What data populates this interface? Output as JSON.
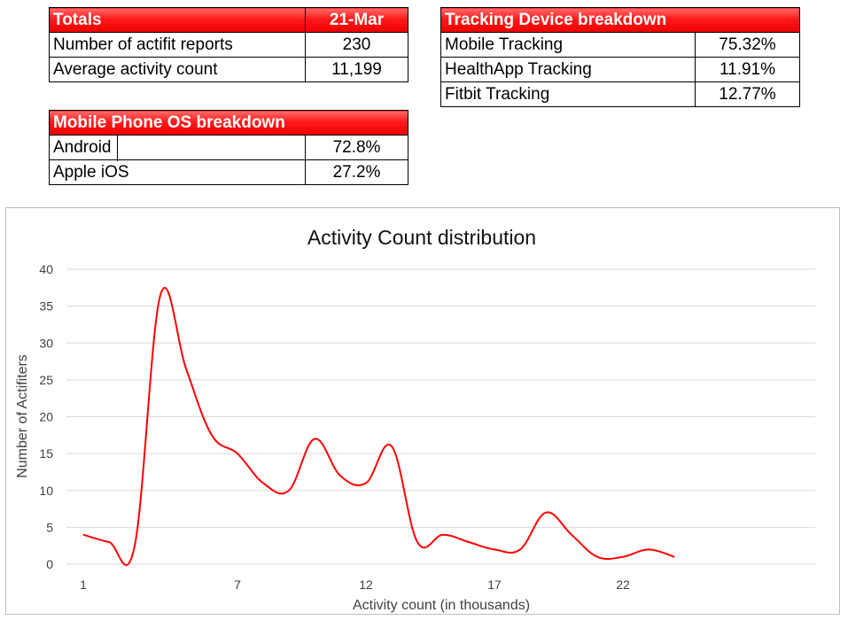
{
  "totals": {
    "header": "Totals",
    "date": "21-Mar",
    "rows": [
      {
        "label": "Number of actifit reports",
        "value": "230"
      },
      {
        "label": "Average activity count",
        "value": "11,199"
      }
    ]
  },
  "tracking": {
    "header": "Tracking Device breakdown",
    "rows": [
      {
        "label": "Mobile Tracking",
        "value": "75.32%"
      },
      {
        "label": "HealthApp Tracking",
        "value": "11.91%"
      },
      {
        "label": "Fitbit Tracking",
        "value": "12.77%"
      }
    ]
  },
  "os": {
    "header": "Mobile Phone OS breakdown",
    "rows": [
      {
        "label": "Android",
        "value": "72.8%"
      },
      {
        "label": "Apple iOS",
        "value": "27.2%"
      }
    ]
  },
  "colors": {
    "header_red": "#ff0000",
    "line": "#ff0000",
    "grid": "#d9d9d9"
  },
  "chart_data": {
    "type": "line",
    "title": "Activity Count distribution",
    "xlabel": "Activity count (in thousands)",
    "ylabel": "Number of Actifiters",
    "x_ticks": [
      "1",
      "7",
      "12",
      "17",
      "22"
    ],
    "y_ticks": [
      "0",
      "5",
      "10",
      "15",
      "20",
      "25",
      "30",
      "35",
      "40"
    ],
    "ylim": [
      0,
      40
    ],
    "smooth": true,
    "grid": true,
    "x": [
      1,
      2,
      3,
      4,
      5,
      6,
      7,
      8,
      9,
      10,
      11,
      12,
      13,
      14,
      15,
      16,
      17,
      18,
      19,
      20,
      21,
      22,
      23,
      24
    ],
    "values": [
      4,
      3,
      2.5,
      36.5,
      26.5,
      17.5,
      15,
      11,
      10,
      17,
      12,
      11,
      16,
      3,
      4,
      3,
      2,
      2,
      7,
      4,
      1,
      1,
      2,
      1
    ]
  }
}
